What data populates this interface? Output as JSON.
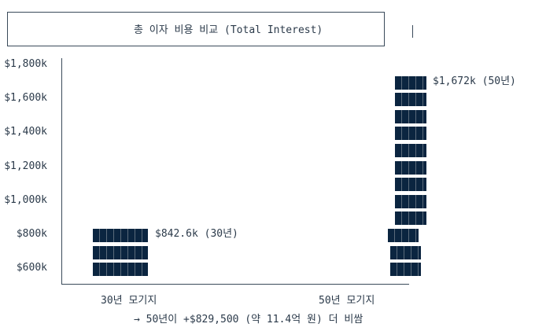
{
  "chart_data": {
    "type": "bar",
    "title": "총 이자 비용 비교 (Total Interest)",
    "categories": [
      "30년 모기지",
      "50년 모기지"
    ],
    "values": [
      842.6,
      1672
    ],
    "unit": "$k",
    "data_labels": [
      "$842.6k (30년)",
      "$1,672k (50년)"
    ],
    "y_ticks": [
      "$1,800k",
      "$1,600k",
      "$1,400k",
      "$1,200k",
      "$1,000k",
      "$800k",
      "$600k"
    ],
    "ylim": [
      600,
      1800
    ],
    "grid": false,
    "annotation": "→ 50년이 +$829,500 (약 11.4억 원) 더 비쌈",
    "bar_color": "#0b2540"
  }
}
